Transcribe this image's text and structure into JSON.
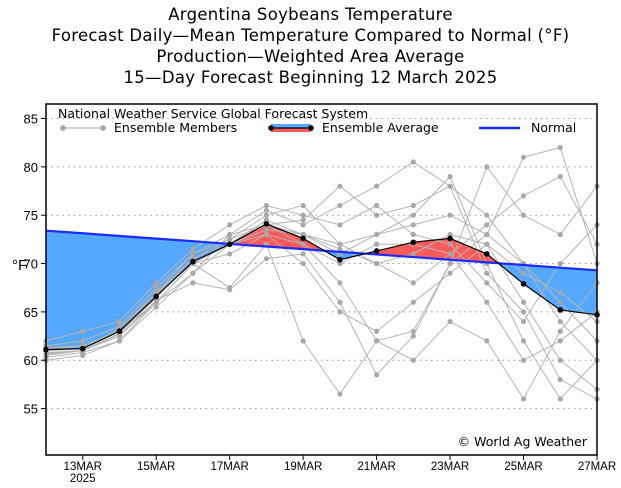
{
  "chart_data": {
    "type": "line",
    "title": "Argentina Soybeans Temperature",
    "subtitles": [
      "Forecast Daily—Mean Temperature Compared to Normal (°F)",
      "Production—Weighted Area Average",
      "15—Day Forecast Beginning 12 March 2025"
    ],
    "ylabel": "°F",
    "ylim": [
      50.2,
      86.5
    ],
    "yticks": [
      55,
      60,
      65,
      70,
      75,
      80,
      85
    ],
    "grid": "horizontal dotted",
    "x": [
      "12MAR",
      "13MAR",
      "14MAR",
      "15MAR",
      "16MAR",
      "17MAR",
      "18MAR",
      "19MAR",
      "20MAR",
      "21MAR",
      "22MAR",
      "23MAR",
      "24MAR",
      "25MAR",
      "26MAR",
      "27MAR"
    ],
    "xtick_labels": [
      {
        "i": 1,
        "label": "13MAR",
        "sub": "2025"
      },
      {
        "i": 3,
        "label": "15MAR"
      },
      {
        "i": 5,
        "label": "17MAR"
      },
      {
        "i": 7,
        "label": "19MAR"
      },
      {
        "i": 9,
        "label": "21MAR"
      },
      {
        "i": 11,
        "label": "23MAR"
      },
      {
        "i": 13,
        "label": "25MAR"
      },
      {
        "i": 15,
        "label": "27MAR"
      }
    ],
    "legend": {
      "title": "National Weather Service Global Forecast System",
      "placement": "top",
      "entries": [
        "Ensemble Members",
        "Ensemble Average",
        "Normal"
      ]
    },
    "annotation": "© World Ag Weather",
    "colors": {
      "members": "#b4b4b4",
      "average": "#000000",
      "normal": "#1a2bff",
      "above": "#ff5a5a",
      "below": "#55a8ff"
    },
    "series": [
      {
        "name": "Ensemble Average",
        "values": [
          61.1,
          61.2,
          63.0,
          66.6,
          70.2,
          72.0,
          74.1,
          72.6,
          70.4,
          71.3,
          72.2,
          72.6,
          71.0,
          67.9,
          65.2,
          64.7
        ]
      },
      {
        "name": "Normal",
        "values": [
          73.4,
          73.13,
          72.85,
          72.58,
          72.31,
          72.03,
          71.76,
          71.49,
          71.21,
          70.94,
          70.67,
          70.39,
          70.12,
          69.85,
          69.57,
          69.3
        ]
      }
    ],
    "members": [
      [
        60.5,
        61,
        62.5,
        66,
        70,
        72,
        74.5,
        73,
        71,
        73,
        74,
        75,
        73,
        70,
        64,
        60
      ],
      [
        61,
        61.5,
        63,
        67,
        70.5,
        72.5,
        75,
        76,
        72,
        70,
        68,
        71,
        74,
        77,
        79,
        72
      ],
      [
        60,
        60.5,
        62,
        65.5,
        69,
        72,
        73,
        70,
        65,
        63,
        66,
        69,
        72,
        66,
        60,
        57
      ],
      [
        61.5,
        62,
        63.5,
        67.5,
        71,
        73,
        75.5,
        74,
        76,
        78,
        80.5,
        78,
        75,
        70,
        66,
        62
      ],
      [
        60.8,
        61,
        62.8,
        66.8,
        70,
        71,
        73,
        72,
        68,
        62,
        60,
        64,
        62,
        56,
        63,
        68
      ],
      [
        61.2,
        61.5,
        63,
        66,
        70,
        67.5,
        72,
        62,
        56.5,
        62,
        63,
        70,
        73,
        81,
        82,
        70
      ],
      [
        60.3,
        60.8,
        62,
        66,
        69,
        73,
        74,
        74.5,
        78,
        75,
        76,
        78,
        69,
        65,
        58,
        56
      ],
      [
        61,
        61.2,
        63.3,
        67,
        71,
        72.5,
        74,
        72,
        70,
        72,
        72,
        71,
        66,
        60,
        62,
        65
      ],
      [
        62,
        63,
        64,
        68,
        71.5,
        74,
        76,
        75,
        74,
        76,
        73,
        72,
        68,
        64,
        70,
        74
      ],
      [
        60.6,
        61,
        62.5,
        66.2,
        68,
        67.3,
        70.5,
        71,
        66,
        58.5,
        62.5,
        70,
        80,
        75,
        73,
        78
      ],
      [
        61.3,
        61.5,
        63,
        67,
        70,
        72,
        74,
        73,
        72,
        73,
        75,
        79,
        70,
        62,
        56,
        60
      ],
      [
        60.7,
        61,
        62.7,
        66.5,
        70.5,
        72,
        73.5,
        73,
        71.5,
        70,
        71,
        73,
        72,
        69,
        67,
        64
      ]
    ]
  }
}
